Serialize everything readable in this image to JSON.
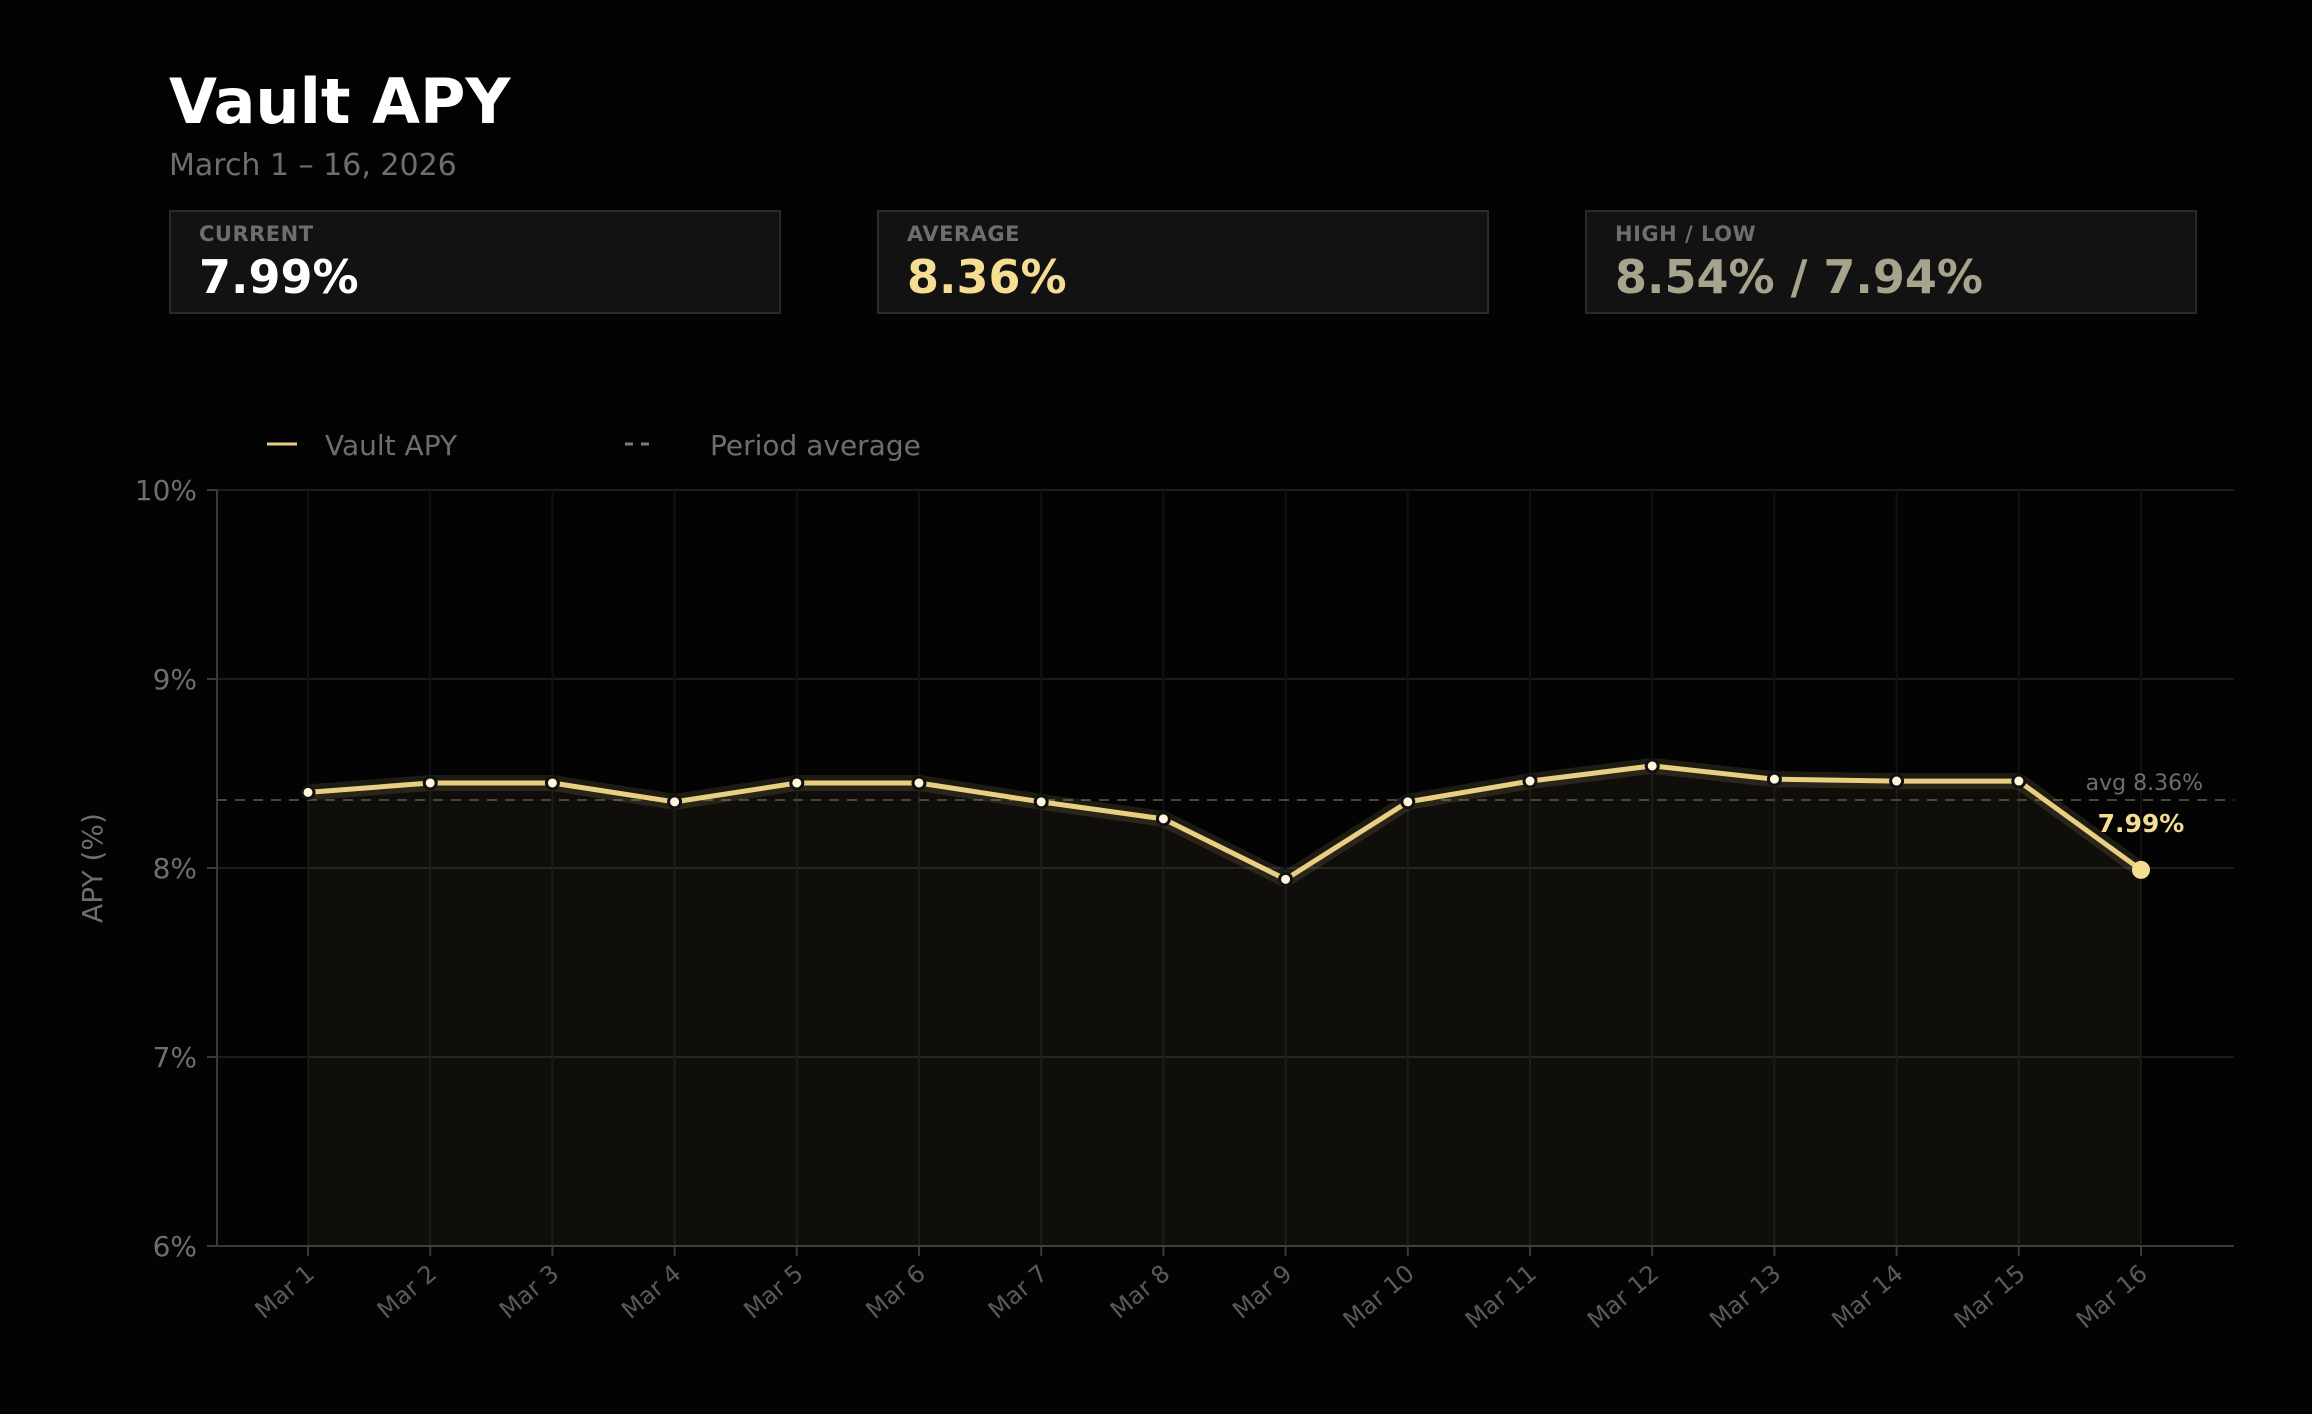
{
  "header": {
    "title": "Vault APY",
    "subtitle": "March 1 – 16, 2026"
  },
  "cards": {
    "current": {
      "label": "CURRENT",
      "value": "7.99%",
      "color": "#ffffff"
    },
    "average": {
      "label": "AVERAGE",
      "value": "8.36%",
      "color": "#f5dd94"
    },
    "highlow": {
      "label": "HIGH / LOW",
      "value": "8.54% / 7.94%",
      "color": "#a8a38c"
    }
  },
  "legend": {
    "series_label": "Vault APY",
    "average_label": "Period average"
  },
  "chart_data": {
    "type": "line",
    "title": "",
    "xlabel": "",
    "ylabel": "APY (%)",
    "ylim": [
      6,
      10
    ],
    "yticks": [
      "6%",
      "7%",
      "8%",
      "9%",
      "10%"
    ],
    "categories": [
      "Mar 1",
      "Mar 2",
      "Mar 3",
      "Mar 4",
      "Mar 5",
      "Mar 6",
      "Mar 7",
      "Mar 8",
      "Mar 9",
      "Mar 10",
      "Mar 11",
      "Mar 12",
      "Mar 13",
      "Mar 14",
      "Mar 15",
      "Mar 16"
    ],
    "series": [
      {
        "name": "Vault APY",
        "color": "#e8cf82",
        "values": [
          8.4,
          8.45,
          8.45,
          8.35,
          8.45,
          8.45,
          8.35,
          8.26,
          7.94,
          8.35,
          8.46,
          8.54,
          8.47,
          8.46,
          8.46,
          7.99
        ]
      }
    ],
    "average": {
      "value": 8.36,
      "label": "avg 8.36%"
    },
    "last_point_label": "7.99%",
    "grid": true,
    "legend_position": "top-left"
  }
}
